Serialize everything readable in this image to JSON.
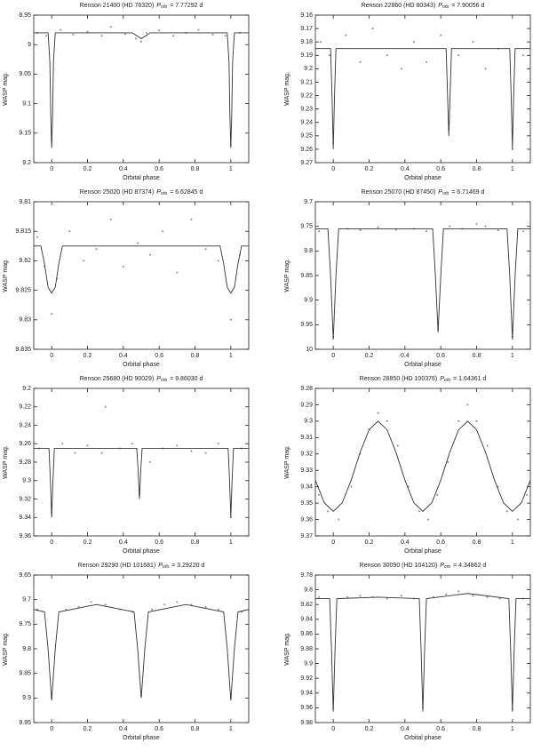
{
  "chart_data": [
    {
      "type": "scatter",
      "title_prefix": "Renson 21400 (HD 76320)",
      "title_var": "P",
      "title_sub": "orb",
      "title_value": "= 7.77292 d",
      "xlabel": "Orbital phase",
      "ylabel": "WASP mag.",
      "xlim": [
        -0.1,
        1.1
      ],
      "xticks": [
        0,
        0.2,
        0.4,
        0.6,
        0.8,
        1
      ],
      "ylim": [
        8.95,
        9.2
      ],
      "y_inverted": true,
      "yticks": [
        8.95,
        9,
        9.05,
        9.1,
        9.15,
        9.2
      ],
      "point_color": "#888888",
      "line_color": "#333333",
      "points": {
        "x": [
          -0.08,
          -0.03,
          0,
          0.05,
          0.12,
          0.2,
          0.28,
          0.33,
          0.41,
          0.47,
          0.5,
          0.53,
          0.6,
          0.68,
          0.75,
          0.82,
          0.9,
          0.97,
          1,
          1.05
        ],
        "values": [
          8.98,
          8.985,
          9.16,
          8.975,
          8.983,
          8.978,
          8.985,
          8.97,
          8.982,
          8.99,
          8.995,
          8.98,
          8.976,
          8.985,
          8.98,
          8.975,
          8.983,
          8.985,
          9.17,
          8.98
        ]
      },
      "model": {
        "x": [
          -0.1,
          -0.02,
          -0.01,
          -0.005,
          0,
          0.005,
          0.01,
          0.02,
          0.45,
          0.5,
          0.55,
          0.98,
          0.99,
          0.995,
          1,
          1.005,
          1.01,
          1.02,
          1.1
        ],
        "values": [
          8.98,
          8.98,
          9.03,
          9.12,
          9.175,
          9.12,
          9.03,
          8.98,
          8.98,
          8.99,
          8.98,
          8.98,
          9.03,
          9.12,
          9.175,
          9.12,
          9.03,
          8.98,
          8.98
        ]
      }
    },
    {
      "type": "scatter",
      "title_prefix": "Renson 22860 (HD 80343)",
      "title_var": "P",
      "title_sub": "orb",
      "title_value": "= 7.90056 d",
      "xlabel": "Orbital phase",
      "ylabel": "WASP mag.",
      "xlim": [
        -0.1,
        1.1
      ],
      "xticks": [
        0,
        0.2,
        0.4,
        0.6,
        0.8,
        1
      ],
      "ylim": [
        9.16,
        9.27
      ],
      "y_inverted": true,
      "yticks": [
        9.16,
        9.17,
        9.18,
        9.19,
        9.2,
        9.21,
        9.22,
        9.23,
        9.24,
        9.25,
        9.26,
        9.27
      ],
      "point_color": "#888888",
      "line_color": "#333333",
      "points": {
        "x": [
          -0.07,
          -0.02,
          0,
          0.07,
          0.15,
          0.22,
          0.3,
          0.38,
          0.45,
          0.52,
          0.6,
          0.645,
          0.7,
          0.78,
          0.85,
          0.92,
          1,
          1.06
        ],
        "values": [
          9.18,
          9.19,
          9.255,
          9.175,
          9.195,
          9.17,
          9.19,
          9.2,
          9.18,
          9.195,
          9.175,
          9.245,
          9.19,
          9.18,
          9.2,
          9.185,
          9.26,
          9.19
        ]
      },
      "model": {
        "x": [
          -0.1,
          -0.015,
          -0.007,
          0,
          0.007,
          0.015,
          0.63,
          0.638,
          0.645,
          0.652,
          0.66,
          0.985,
          0.993,
          1,
          1.007,
          1.015,
          1.1
        ],
        "values": [
          9.185,
          9.185,
          9.22,
          9.26,
          9.22,
          9.185,
          9.185,
          9.22,
          9.25,
          9.22,
          9.185,
          9.185,
          9.22,
          9.26,
          9.22,
          9.185,
          9.185
        ]
      }
    },
    {
      "type": "scatter",
      "title_prefix": "Renson 25020 (HD 87374)",
      "title_var": "P",
      "title_sub": "orb",
      "title_value": "= 6.62845 d",
      "xlabel": "Orbital phase",
      "ylabel": "WASP mag.",
      "xlim": [
        -0.1,
        1.1
      ],
      "xticks": [
        0,
        0.2,
        0.4,
        0.6,
        0.8,
        1
      ],
      "ylim": [
        9.81,
        9.835
      ],
      "y_inverted": true,
      "yticks": [
        9.81,
        9.815,
        9.82,
        9.825,
        9.83,
        9.835
      ],
      "point_color": "#888888",
      "line_color": "#333333",
      "points": {
        "x": [
          -0.08,
          -0.04,
          0,
          0.03,
          0.1,
          0.18,
          0.25,
          0.33,
          0.4,
          0.48,
          0.55,
          0.62,
          0.7,
          0.78,
          0.86,
          0.93,
          1,
          1.05
        ],
        "values": [
          9.816,
          9.821,
          9.829,
          9.823,
          9.815,
          9.82,
          9.818,
          9.813,
          9.821,
          9.817,
          9.819,
          9.815,
          9.822,
          9.813,
          9.818,
          9.82,
          9.83,
          9.819
        ]
      },
      "model": {
        "x": [
          -0.1,
          -0.06,
          -0.04,
          -0.02,
          0,
          0.02,
          0.04,
          0.06,
          0.94,
          0.96,
          0.98,
          1,
          1.02,
          1.04,
          1.06,
          1.1
        ],
        "values": [
          9.8175,
          9.8175,
          9.8205,
          9.8245,
          9.8255,
          9.8245,
          9.8205,
          9.8175,
          9.8175,
          9.8205,
          9.8245,
          9.8255,
          9.8245,
          9.8205,
          9.8175,
          9.8175
        ]
      }
    },
    {
      "type": "scatter",
      "title_prefix": "Renson 25070 (HD 87450)",
      "title_var": "P",
      "title_sub": "orb",
      "title_value": "= 6.71469 d",
      "xlabel": "Orbital phase",
      "ylabel": "WASP mag.",
      "xlim": [
        -0.1,
        1.1
      ],
      "xticks": [
        0,
        0.2,
        0.4,
        0.6,
        0.8,
        1
      ],
      "ylim": [
        9.7,
        10
      ],
      "y_inverted": true,
      "yticks": [
        9.7,
        9.75,
        9.8,
        9.85,
        9.9,
        9.95,
        10
      ],
      "point_color": "#888888",
      "line_color": "#333333",
      "points": {
        "x": [
          -0.08,
          0,
          0.08,
          0.15,
          0.25,
          0.35,
          0.45,
          0.52,
          0.585,
          0.65,
          0.72,
          0.8,
          0.85,
          0.92,
          1,
          1.06
        ],
        "values": [
          9.76,
          9.975,
          9.755,
          9.758,
          9.752,
          9.757,
          9.755,
          9.76,
          9.96,
          9.75,
          9.755,
          9.745,
          9.75,
          9.758,
          9.975,
          9.76
        ]
      },
      "model": {
        "x": [
          -0.1,
          -0.03,
          -0.015,
          0,
          0.015,
          0.03,
          0.555,
          0.57,
          0.585,
          0.6,
          0.615,
          0.97,
          0.985,
          1,
          1.015,
          1.03,
          1.1
        ],
        "values": [
          9.755,
          9.755,
          9.85,
          9.98,
          9.85,
          9.755,
          9.755,
          9.85,
          9.965,
          9.85,
          9.755,
          9.755,
          9.85,
          9.98,
          9.85,
          9.755,
          9.755
        ]
      }
    },
    {
      "type": "scatter",
      "title_prefix": "Renson 25680 (HD 90029)",
      "title_var": "P",
      "title_sub": "orb",
      "title_value": "= 9.86030 d",
      "xlabel": "Orbital phase",
      "ylabel": "WASP mag.",
      "xlim": [
        -0.1,
        1.1
      ],
      "xticks": [
        0,
        0.2,
        0.4,
        0.6,
        0.8,
        1
      ],
      "ylim": [
        9.2,
        9.36
      ],
      "y_inverted": true,
      "yticks": [
        9.2,
        9.22,
        9.24,
        9.26,
        9.28,
        9.3,
        9.32,
        9.34,
        9.36
      ],
      "point_color": "#888888",
      "line_color": "#333333",
      "points": {
        "x": [
          -0.07,
          0,
          0.06,
          0.13,
          0.2,
          0.28,
          0.3,
          0.38,
          0.45,
          0.49,
          0.55,
          0.62,
          0.7,
          0.78,
          0.86,
          0.93,
          1,
          1.06
        ],
        "values": [
          9.265,
          9.335,
          9.26,
          9.27,
          9.262,
          9.27,
          9.22,
          9.265,
          9.26,
          9.315,
          9.28,
          9.265,
          9.262,
          9.268,
          9.27,
          9.26,
          9.34,
          9.265
        ]
      },
      "model": {
        "x": [
          -0.1,
          -0.015,
          -0.007,
          0,
          0.007,
          0.015,
          0.475,
          0.483,
          0.49,
          0.497,
          0.505,
          0.985,
          0.993,
          1,
          1.007,
          1.015,
          1.1
        ],
        "values": [
          9.265,
          9.265,
          9.3,
          9.34,
          9.3,
          9.265,
          9.265,
          9.29,
          9.32,
          9.29,
          9.265,
          9.265,
          9.3,
          9.34,
          9.3,
          9.265,
          9.265
        ]
      }
    },
    {
      "type": "scatter",
      "title_prefix": "Renson 28850 (HD 100376)",
      "title_var": "P",
      "title_sub": "orb",
      "title_value": "= 1.64361 d",
      "xlabel": "Orbital phase",
      "ylabel": "WASP mag.",
      "xlim": [
        -0.1,
        1.1
      ],
      "xticks": [
        0,
        0.2,
        0.4,
        0.6,
        0.8,
        1
      ],
      "ylim": [
        9.28,
        9.37
      ],
      "y_inverted": true,
      "yticks": [
        9.28,
        9.29,
        9.3,
        9.31,
        9.32,
        9.33,
        9.34,
        9.35,
        9.36,
        9.37
      ],
      "point_color": "#888888",
      "line_color": "#333333",
      "points": {
        "x": [
          -0.08,
          -0.03,
          0.03,
          0.1,
          0.15,
          0.2,
          0.25,
          0.3,
          0.36,
          0.42,
          0.48,
          0.53,
          0.58,
          0.64,
          0.7,
          0.75,
          0.8,
          0.86,
          0.92,
          0.97,
          1.03,
          1.08
        ],
        "values": [
          9.345,
          9.355,
          9.36,
          9.34,
          9.32,
          9.305,
          9.295,
          9.3,
          9.315,
          9.34,
          9.355,
          9.36,
          9.345,
          9.325,
          9.3,
          9.29,
          9.3,
          9.315,
          9.34,
          9.355,
          9.36,
          9.345
        ]
      },
      "model": {
        "x": [
          -0.1,
          -0.05,
          0,
          0.05,
          0.1,
          0.15,
          0.2,
          0.25,
          0.3,
          0.35,
          0.4,
          0.45,
          0.5,
          0.55,
          0.6,
          0.65,
          0.7,
          0.75,
          0.8,
          0.85,
          0.9,
          0.95,
          1,
          1.05,
          1.1
        ],
        "values": [
          9.336,
          9.3498,
          9.355,
          9.3498,
          9.336,
          9.319,
          9.3052,
          9.3,
          9.3052,
          9.319,
          9.336,
          9.3498,
          9.355,
          9.3498,
          9.336,
          9.319,
          9.3052,
          9.3,
          9.3052,
          9.319,
          9.336,
          9.3498,
          9.355,
          9.3498,
          9.336
        ]
      }
    },
    {
      "type": "scatter",
      "title_prefix": "Renson 29290 (HD 101681)",
      "title_var": "P",
      "title_sub": "orb",
      "title_value": "= 3.29220 d",
      "xlabel": "Orbital phase",
      "ylabel": "WASP mag.",
      "xlim": [
        -0.1,
        1.1
      ],
      "xticks": [
        0,
        0.2,
        0.4,
        0.6,
        0.8,
        1
      ],
      "ylim": [
        9.65,
        9.95
      ],
      "y_inverted": true,
      "yticks": [
        9.65,
        9.7,
        9.75,
        9.8,
        9.85,
        9.9,
        9.95
      ],
      "point_color": "#888888",
      "line_color": "#333333",
      "points": {
        "x": [
          -0.08,
          0,
          0.08,
          0.15,
          0.22,
          0.3,
          0.38,
          0.45,
          0.5,
          0.56,
          0.63,
          0.7,
          0.78,
          0.86,
          0.93,
          1,
          1.06
        ],
        "values": [
          9.72,
          9.9,
          9.72,
          9.715,
          9.705,
          9.71,
          9.72,
          9.725,
          9.895,
          9.72,
          9.71,
          9.705,
          9.71,
          9.715,
          9.72,
          9.9,
          9.725
        ]
      },
      "model": {
        "x": [
          -0.1,
          -0.04,
          -0.02,
          0,
          0.02,
          0.04,
          0.25,
          0.46,
          0.48,
          0.5,
          0.52,
          0.54,
          0.75,
          0.96,
          0.98,
          1,
          1.02,
          1.04,
          1.1
        ],
        "values": [
          9.72,
          9.725,
          9.8,
          9.905,
          9.8,
          9.725,
          9.71,
          9.725,
          9.8,
          9.9,
          9.8,
          9.725,
          9.71,
          9.725,
          9.8,
          9.905,
          9.8,
          9.725,
          9.72
        ]
      }
    },
    {
      "type": "scatter",
      "title_prefix": "Renson 30090 (HD 104120)",
      "title_var": "P",
      "title_sub": "orb",
      "title_value": "= 4.34862 d",
      "xlabel": "Orbital phase",
      "ylabel": "WASP mag.",
      "xlim": [
        -0.1,
        1.1
      ],
      "xticks": [
        0,
        0.2,
        0.4,
        0.6,
        0.8,
        1
      ],
      "ylim": [
        9.78,
        9.98
      ],
      "y_inverted": true,
      "yticks": [
        9.78,
        9.8,
        9.82,
        9.84,
        9.86,
        9.88,
        9.9,
        9.92,
        9.94,
        9.96,
        9.98
      ],
      "point_color": "#888888",
      "line_color": "#333333",
      "points": {
        "x": [
          -0.08,
          0,
          0.08,
          0.15,
          0.22,
          0.3,
          0.38,
          0.45,
          0.5,
          0.56,
          0.63,
          0.7,
          0.78,
          0.86,
          0.93,
          1,
          1.06
        ],
        "values": [
          9.81,
          9.96,
          9.81,
          9.808,
          9.81,
          9.812,
          9.808,
          9.812,
          9.96,
          9.81,
          9.806,
          9.802,
          9.808,
          9.81,
          9.812,
          9.962,
          9.812
        ]
      },
      "model": {
        "x": [
          -0.1,
          -0.02,
          -0.01,
          0,
          0.01,
          0.02,
          0.25,
          0.48,
          0.49,
          0.5,
          0.51,
          0.52,
          0.75,
          0.98,
          0.99,
          1,
          1.01,
          1.02,
          1.1
        ],
        "values": [
          9.812,
          9.812,
          9.88,
          9.965,
          9.88,
          9.812,
          9.81,
          9.812,
          9.88,
          9.965,
          9.88,
          9.812,
          9.805,
          9.812,
          9.88,
          9.965,
          9.88,
          9.812,
          9.812
        ]
      }
    }
  ]
}
